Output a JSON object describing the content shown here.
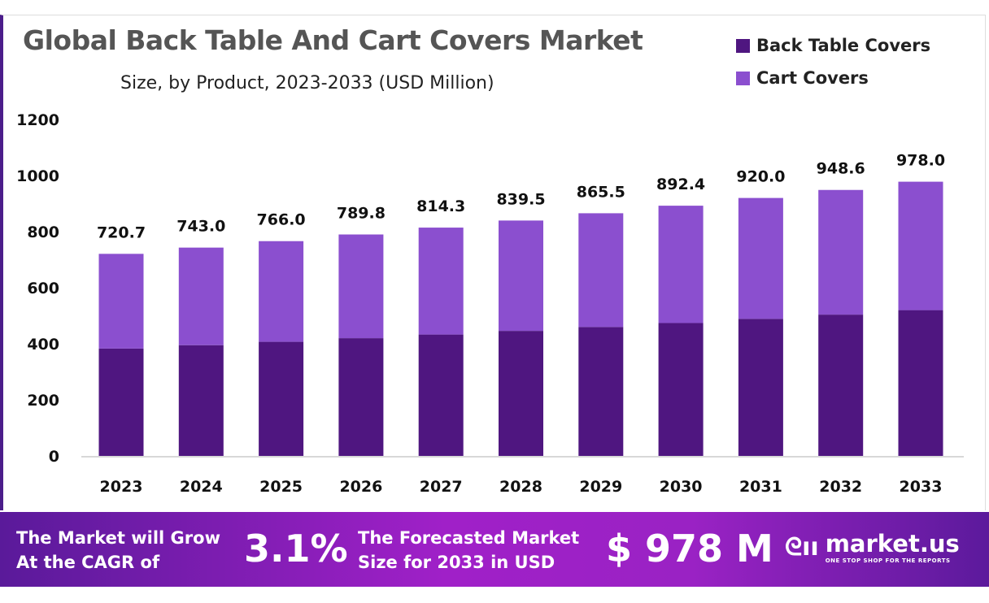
{
  "chart_data": {
    "type": "bar",
    "stacked": true,
    "title": "Global Back Table And Cart Covers Market",
    "subtitle": "Size, by Product, 2023-2033 (USD Million)",
    "categories": [
      "2023",
      "2024",
      "2025",
      "2026",
      "2027",
      "2028",
      "2029",
      "2030",
      "2031",
      "2032",
      "2033"
    ],
    "totals": [
      "720.7",
      "743.0",
      "766.0",
      "789.8",
      "814.3",
      "839.5",
      "865.5",
      "892.4",
      "920.0",
      "948.6",
      "978.0"
    ],
    "series": [
      {
        "name": "Back Table Covers",
        "color": "#4f1680",
        "values": [
          383,
          395,
          407,
          420,
          433,
          446,
          460,
          474,
          489,
          504,
          520
        ]
      },
      {
        "name": "Cart Covers",
        "color": "#8b4fcf",
        "values": [
          337.7,
          348,
          359,
          369.8,
          381.3,
          393.5,
          405.5,
          418.4,
          431,
          444.6,
          458
        ]
      }
    ],
    "yticks": [
      "0",
      "200",
      "400",
      "600",
      "800",
      "1000",
      "1200"
    ],
    "ylim": [
      0,
      1200
    ],
    "grid": false,
    "legend_position": "top-right"
  },
  "footer": {
    "cagr_text_1": "The Market will Grow",
    "cagr_text_2": "At the CAGR of",
    "cagr_value": "3.1%",
    "forecast_text_1": "The Forecasted Market",
    "forecast_text_2": "Size for 2033 in USD",
    "forecast_value": "$ 978 M",
    "logo_name": "market.us",
    "logo_tagline": "ONE STOP SHOP FOR THE REPORTS"
  }
}
